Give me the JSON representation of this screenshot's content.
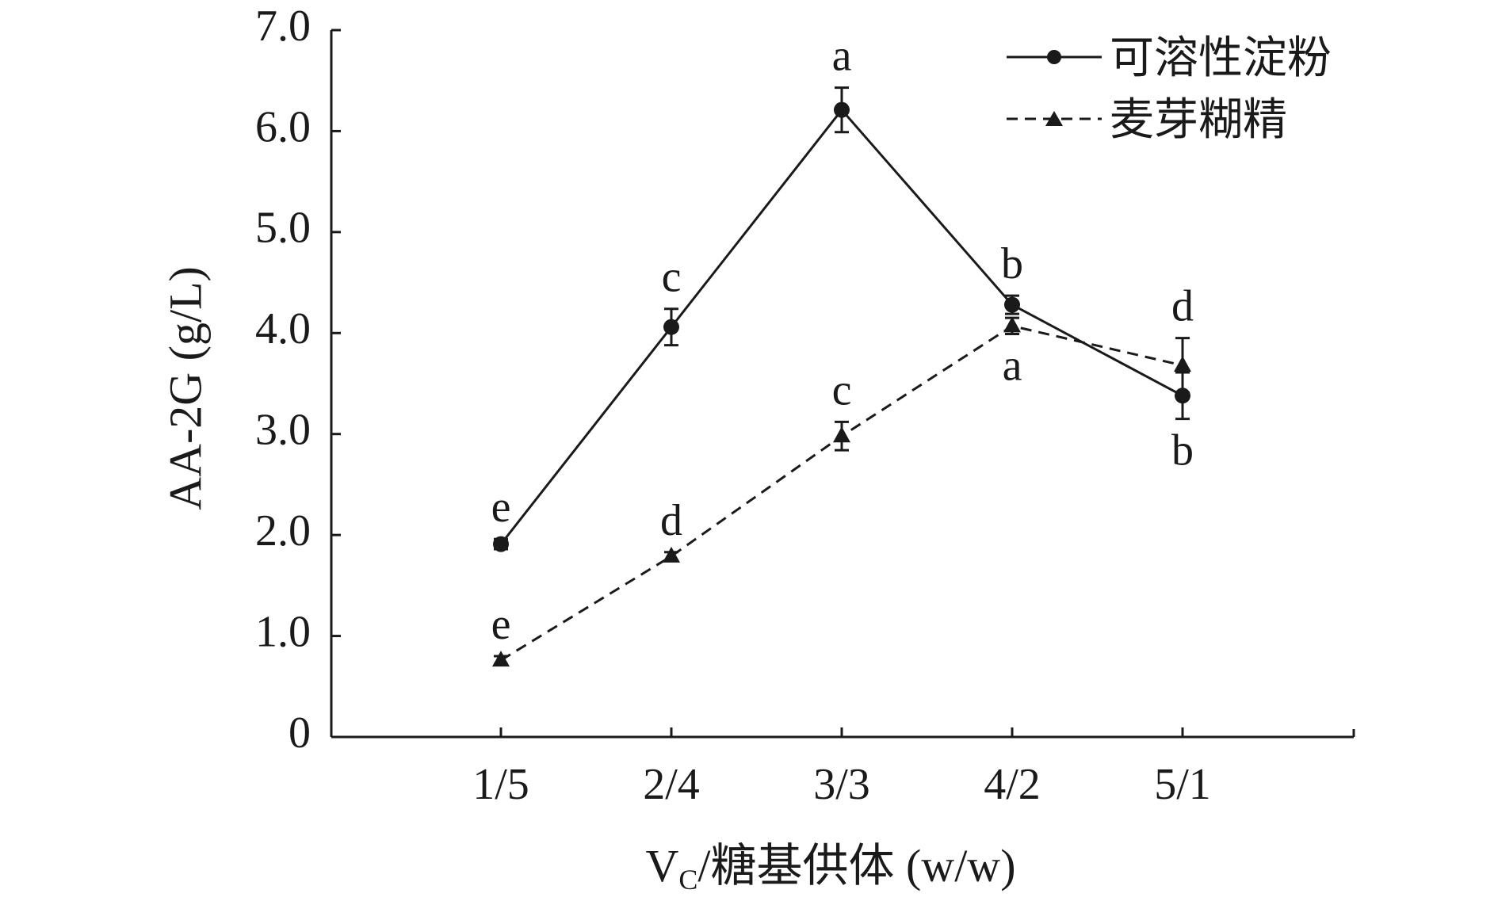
{
  "chart_data": {
    "type": "line",
    "categories": [
      "1/5",
      "2/4",
      "3/3",
      "4/2",
      "5/1"
    ],
    "xlabel": {
      "prefix": "V",
      "subscript": "C",
      "suffix": "/糖基供体 (w/w)"
    },
    "ylabel": "AA-2G (g/L)",
    "ylim": [
      0,
      7.0
    ],
    "y_ticks": [
      "0",
      "1.0",
      "2.0",
      "3.0",
      "4.0",
      "5.0",
      "6.0",
      "7.0"
    ],
    "y_tick_values": [
      0,
      1,
      2,
      3,
      4,
      5,
      6,
      7
    ],
    "legend_position": "top-right",
    "grid": false,
    "series": [
      {
        "name": "可溶性淀粉",
        "line_style": "solid",
        "marker": "circle",
        "color": "#1a1a1a",
        "values": [
          1.91,
          4.06,
          6.21,
          4.28,
          3.38
        ],
        "errors": [
          0.05,
          0.18,
          0.22,
          0.09,
          0.23
        ],
        "letters": [
          "e",
          "c",
          "a",
          "b",
          "b"
        ]
      },
      {
        "name": "麦芽糊精",
        "line_style": "dashed",
        "marker": "triangle",
        "color": "#1a1a1a",
        "values": [
          0.76,
          1.79,
          2.98,
          4.07,
          3.68
        ],
        "errors": [
          0.04,
          0.04,
          0.14,
          0.08,
          0.27
        ],
        "letters": [
          "e",
          "d",
          "c",
          "a",
          "d"
        ]
      }
    ]
  }
}
